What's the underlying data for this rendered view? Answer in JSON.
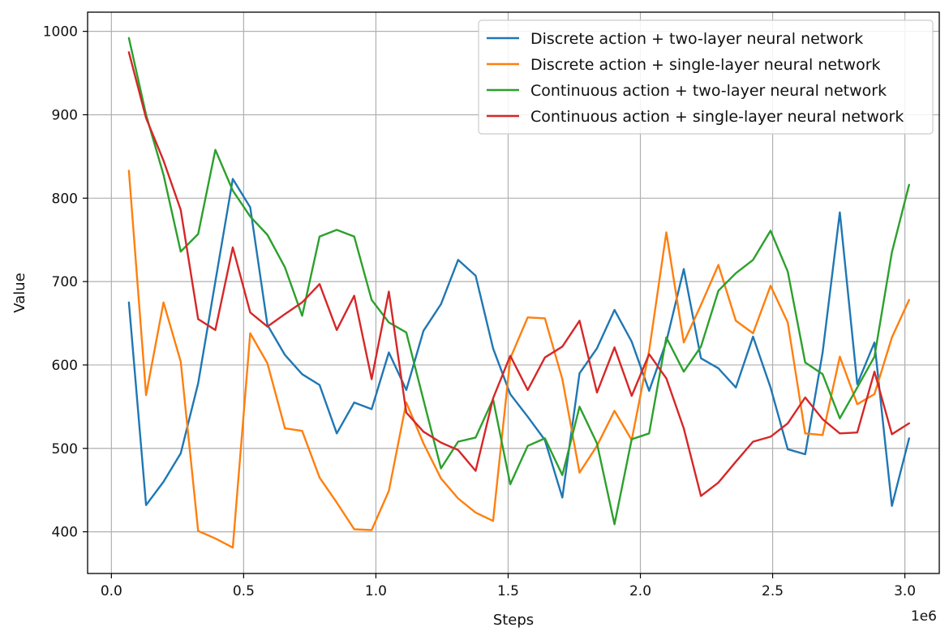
{
  "chart_data": {
    "type": "line",
    "title": "",
    "xlabel": "Steps",
    "ylabel": "Value",
    "x_offset_label": "1e6",
    "xlim": [
      -0.09,
      3.13
    ],
    "ylim": [
      350,
      1023
    ],
    "xticks": [
      0.0,
      0.5,
      1.0,
      1.5,
      2.0,
      2.5,
      3.0
    ],
    "xtick_labels": [
      "0.0",
      "0.5",
      "1.0",
      "1.5",
      "2.0",
      "2.5",
      "3.0"
    ],
    "yticks": [
      400,
      500,
      600,
      700,
      800,
      900,
      1000
    ],
    "ytick_labels": [
      "400",
      "500",
      "600",
      "700",
      "800",
      "900",
      "1000"
    ],
    "grid": true,
    "legend_position": "top-right",
    "x": [
      0.066,
      0.131,
      0.197,
      0.262,
      0.328,
      0.393,
      0.459,
      0.525,
      0.59,
      0.656,
      0.721,
      0.787,
      0.852,
      0.918,
      0.984,
      1.049,
      1.115,
      1.18,
      1.246,
      1.311,
      1.377,
      1.443,
      1.508,
      1.574,
      1.639,
      1.705,
      1.77,
      1.836,
      1.902,
      1.967,
      2.033,
      2.098,
      2.164,
      2.229,
      2.295,
      2.361,
      2.426,
      2.492,
      2.557,
      2.623,
      2.689,
      2.754,
      2.82,
      2.885,
      2.951,
      3.016
    ],
    "series": [
      {
        "name": "Discrete action + two-layer neural network",
        "color": "#1f77b4",
        "values": [
          675,
          432,
          460,
          494,
          578,
          700,
          823,
          789,
          648,
          612,
          589,
          576,
          518,
          555,
          547,
          615,
          570,
          641,
          673,
          726,
          707,
          620,
          565,
          538,
          510,
          441,
          590,
          620,
          666,
          628,
          569,
          628,
          715,
          608,
          596,
          573,
          634,
          573,
          499,
          493,
          615,
          783,
          577,
          627,
          431,
          512
        ]
      },
      {
        "name": "Discrete action + single-layer neural network",
        "color": "#ff7f0e",
        "values": [
          833,
          564,
          675,
          604,
          401,
          392,
          381,
          638,
          602,
          524,
          521,
          465,
          435,
          403,
          402,
          449,
          555,
          506,
          464,
          440,
          423,
          413,
          608,
          657,
          656,
          583,
          471,
          503,
          545,
          510,
          617,
          759,
          627,
          672,
          720,
          653,
          638,
          695,
          651,
          518,
          516,
          610,
          553,
          565,
          633,
          678
        ]
      },
      {
        "name": "Continuous action + two-layer neural network",
        "color": "#2ca02c",
        "values": [
          992,
          900,
          828,
          736,
          757,
          858,
          809,
          778,
          756,
          717,
          659,
          754,
          762,
          754,
          678,
          651,
          639,
          558,
          476,
          508,
          513,
          559,
          457,
          503,
          512,
          468,
          550,
          506,
          409,
          511,
          518,
          633,
          592,
          622,
          689,
          710,
          726,
          761,
          712,
          603,
          589,
          536,
          573,
          610,
          735,
          816
        ]
      },
      {
        "name": "Continuous action + single-layer neural network",
        "color": "#d62728",
        "values": [
          975,
          896,
          845,
          786,
          655,
          642,
          741,
          663,
          646,
          661,
          675,
          697,
          642,
          683,
          583,
          688,
          543,
          520,
          507,
          498,
          473,
          560,
          611,
          570,
          609,
          622,
          653,
          567,
          621,
          563,
          613,
          584,
          524,
          443,
          459,
          484,
          508,
          514,
          530,
          561,
          535,
          518,
          519,
          592,
          517,
          530
        ]
      }
    ]
  }
}
